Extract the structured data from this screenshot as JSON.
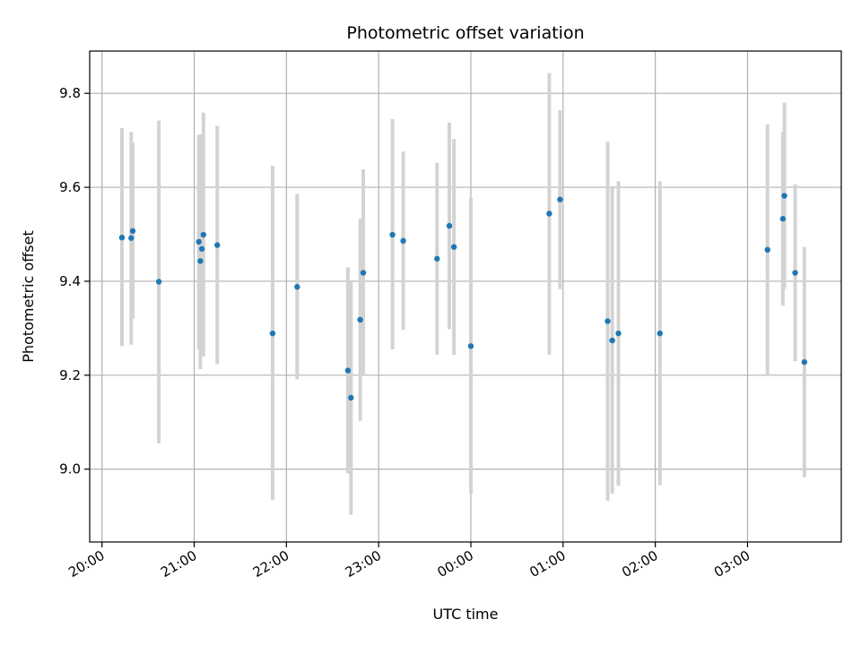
{
  "chart_data": {
    "type": "scatter",
    "title": "Photometric offset variation",
    "xlabel": "UTC time",
    "ylabel": "Photometric offset",
    "x_axis": {
      "type": "time",
      "range": [
        "19:52",
        "04:01"
      ],
      "ticks": [
        "20:00",
        "21:00",
        "22:00",
        "23:00",
        "00:00",
        "01:00",
        "02:00",
        "03:00"
      ]
    },
    "y_axis": {
      "range": [
        8.845,
        9.89
      ],
      "ticks": [
        "9.0",
        "9.2",
        "9.4",
        "9.6",
        "9.8"
      ]
    },
    "grid": true,
    "marker_color": "#1f77b4",
    "errorbar_color": "#d3d3d3",
    "points": [
      {
        "x": "20:13",
        "y": 9.493,
        "low": 9.262,
        "high": 9.726
      },
      {
        "x": "20:19",
        "y": 9.492,
        "low": 9.265,
        "high": 9.718
      },
      {
        "x": "20:20",
        "y": 9.507,
        "low": 9.32,
        "high": 9.695
      },
      {
        "x": "20:37",
        "y": 9.399,
        "low": 9.055,
        "high": 9.742
      },
      {
        "x": "21:03",
        "y": 9.484,
        "low": 9.256,
        "high": 9.712
      },
      {
        "x": "21:04",
        "y": 9.443,
        "low": 9.213,
        "high": 9.672
      },
      {
        "x": "21:05",
        "y": 9.469,
        "low": 9.264,
        "high": 9.713
      },
      {
        "x": "21:06",
        "y": 9.499,
        "low": 9.24,
        "high": 9.759
      },
      {
        "x": "21:15",
        "y": 9.477,
        "low": 9.224,
        "high": 9.731
      },
      {
        "x": "21:51",
        "y": 9.289,
        "low": 8.934,
        "high": 9.646
      },
      {
        "x": "22:07",
        "y": 9.388,
        "low": 9.191,
        "high": 9.586
      },
      {
        "x": "22:40",
        "y": 9.21,
        "low": 8.991,
        "high": 9.43
      },
      {
        "x": "22:42",
        "y": 9.152,
        "low": 8.903,
        "high": 9.402
      },
      {
        "x": "22:48",
        "y": 9.318,
        "low": 9.103,
        "high": 9.533
      },
      {
        "x": "22:50",
        "y": 9.418,
        "low": 9.2,
        "high": 9.638
      },
      {
        "x": "23:09",
        "y": 9.499,
        "low": 9.255,
        "high": 9.745
      },
      {
        "x": "23:16",
        "y": 9.486,
        "low": 9.297,
        "high": 9.676
      },
      {
        "x": "23:38",
        "y": 9.448,
        "low": 9.244,
        "high": 9.652
      },
      {
        "x": "23:46",
        "y": 9.518,
        "low": 9.298,
        "high": 9.738
      },
      {
        "x": "23:49",
        "y": 9.473,
        "low": 9.243,
        "high": 9.703
      },
      {
        "x": "00:00",
        "y": 9.262,
        "low": 8.948,
        "high": 9.578
      },
      {
        "x": "00:51",
        "y": 9.544,
        "low": 9.244,
        "high": 9.843
      },
      {
        "x": "00:58",
        "y": 9.574,
        "low": 9.383,
        "high": 9.764
      },
      {
        "x": "01:29",
        "y": 9.315,
        "low": 8.933,
        "high": 9.697
      },
      {
        "x": "01:32",
        "y": 9.274,
        "low": 8.948,
        "high": 9.6
      },
      {
        "x": "01:36",
        "y": 9.289,
        "low": 8.965,
        "high": 9.613
      },
      {
        "x": "02:03",
        "y": 9.289,
        "low": 8.966,
        "high": 9.613
      },
      {
        "x": "03:13",
        "y": 9.467,
        "low": 9.2,
        "high": 9.734
      },
      {
        "x": "03:23",
        "y": 9.533,
        "low": 9.348,
        "high": 9.718
      },
      {
        "x": "03:24",
        "y": 9.582,
        "low": 9.384,
        "high": 9.78
      },
      {
        "x": "03:31",
        "y": 9.418,
        "low": 9.23,
        "high": 9.606
      },
      {
        "x": "03:37",
        "y": 9.228,
        "low": 8.983,
        "high": 9.473
      }
    ]
  }
}
